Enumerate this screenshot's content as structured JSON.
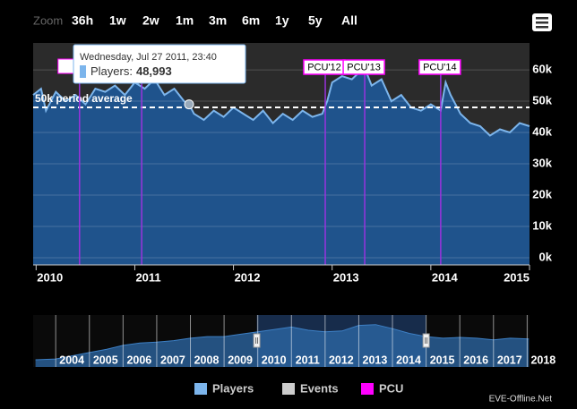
{
  "chart_data": {
    "type": "area",
    "range_selector": {
      "label": "Zoom",
      "buttons": [
        "36h",
        "1w",
        "2w",
        "1m",
        "3m",
        "6m",
        "1y",
        "5y",
        "All"
      ]
    },
    "xlim": [
      2009.97,
      2015.0
    ],
    "xticks": [
      2010,
      2011,
      2012,
      2013,
      2014,
      2015
    ],
    "ylim": [
      -2300,
      68600
    ],
    "yticks": [
      {
        "value": 0,
        "label": "0k"
      },
      {
        "value": 10000,
        "label": "10k"
      },
      {
        "value": 20000,
        "label": "20k"
      },
      {
        "value": 30000,
        "label": "30k"
      },
      {
        "value": 40000,
        "label": "40k"
      },
      {
        "value": 50000,
        "label": "50k"
      },
      {
        "value": 60000,
        "label": "60k"
      }
    ],
    "grid": true,
    "series": [
      {
        "name": "Players",
        "color": "#7cb5ec",
        "x": [
          2009.97,
          2010.05,
          2010.1,
          2010.2,
          2010.3,
          2010.4,
          2010.5,
          2010.6,
          2010.7,
          2010.8,
          2010.9,
          2011.0,
          2011.1,
          2011.2,
          2011.3,
          2011.4,
          2011.5,
          2011.55,
          2011.6,
          2011.7,
          2011.8,
          2011.9,
          2012.0,
          2012.1,
          2012.2,
          2012.3,
          2012.4,
          2012.5,
          2012.6,
          2012.7,
          2012.8,
          2012.9,
          2012.95,
          2013.0,
          2013.1,
          2013.2,
          2013.3,
          2013.35,
          2013.4,
          2013.5,
          2013.6,
          2013.7,
          2013.8,
          2013.9,
          2014.0,
          2014.1,
          2014.15,
          2014.2,
          2014.3,
          2014.4,
          2014.5,
          2014.6,
          2014.7,
          2014.8,
          2014.9,
          2015.0
        ],
        "values": [
          52000,
          54000,
          47000,
          53000,
          50000,
          52000,
          49000,
          54000,
          53000,
          55000,
          52000,
          56000,
          54000,
          57000,
          52000,
          54000,
          50000,
          48993,
          46000,
          44000,
          47000,
          45000,
          48000,
          46000,
          44000,
          47000,
          43000,
          46000,
          44000,
          47000,
          45000,
          46000,
          50000,
          56000,
          58000,
          57000,
          60000,
          59000,
          55000,
          57000,
          50000,
          52000,
          48000,
          47000,
          49000,
          47000,
          56000,
          52000,
          46000,
          43000,
          42000,
          39000,
          41000,
          40000,
          43000,
          42000
        ]
      }
    ],
    "plot_line": {
      "value": 48000,
      "label": "50k period average"
    },
    "event_lines": [
      2010.44,
      2011.07
    ],
    "flags": [
      {
        "x": 2012.93,
        "title": "PCU'12"
      },
      {
        "x": 2013.33,
        "title": "PCU'13"
      },
      {
        "x": 2014.1,
        "title": "PCU'14"
      }
    ],
    "tooltip": {
      "date": "Wednesday, Jul 27 2011, 23:40",
      "label": "Players:",
      "value": 48993,
      "value_label": "48,993"
    },
    "navigator": {
      "xlim": [
        2003.33,
        2018.07
      ],
      "ylim": [
        0,
        65000
      ],
      "xticks": [
        2004,
        2005,
        2006,
        2007,
        2008,
        2009,
        2010,
        2011,
        2012,
        2013,
        2014,
        2015,
        2016,
        2017,
        2018
      ],
      "x": [
        2003.4,
        2004,
        2004.5,
        2005,
        2005.5,
        2006,
        2006.5,
        2007,
        2007.5,
        2008,
        2008.5,
        2009,
        2009.5,
        2010,
        2010.5,
        2011,
        2011.5,
        2012,
        2012.5,
        2013,
        2013.5,
        2014,
        2014.5,
        2015,
        2015.5,
        2016,
        2016.5,
        2017,
        2017.5,
        2018.05
      ],
      "values": [
        9000,
        10000,
        14000,
        18000,
        22000,
        27000,
        30000,
        31000,
        33000,
        36000,
        38000,
        38000,
        41000,
        44000,
        47000,
        50000,
        46000,
        44000,
        45000,
        52000,
        53000,
        48000,
        42000,
        38000,
        36000,
        37000,
        36000,
        34000,
        36000,
        35000
      ]
    },
    "legend": [
      {
        "name": "Players",
        "color": "#7cb5ec"
      },
      {
        "name": "Events",
        "color": "#cccccc"
      },
      {
        "name": "PCU",
        "color": "#ff00ff"
      }
    ],
    "credits": "EVE-Offline.Net"
  }
}
